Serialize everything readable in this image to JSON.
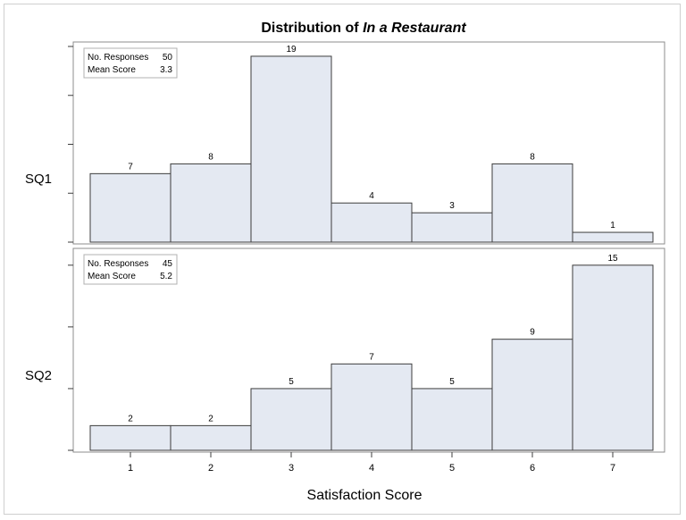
{
  "chart_data": {
    "type": "bar",
    "title_prefix": "Distribution of ",
    "title_emphasis": "In a Restaurant",
    "xlabel": "Satisfaction Score",
    "categories": [
      "1",
      "2",
      "3",
      "4",
      "5",
      "6",
      "7"
    ],
    "panels": [
      {
        "name": "SQ1",
        "values": [
          7,
          8,
          19,
          4,
          3,
          8,
          1
        ],
        "stats": {
          "responses_label": "No. Responses",
          "responses": "50",
          "mean_label": "Mean Score",
          "mean": "3.3"
        },
        "ylim": [
          0,
          20
        ]
      },
      {
        "name": "SQ2",
        "values": [
          2,
          2,
          5,
          7,
          5,
          9,
          15
        ],
        "stats": {
          "responses_label": "No. Responses",
          "responses": "45",
          "mean_label": "Mean Score",
          "mean": "5.2"
        },
        "ylim": [
          0,
          16
        ]
      }
    ]
  }
}
